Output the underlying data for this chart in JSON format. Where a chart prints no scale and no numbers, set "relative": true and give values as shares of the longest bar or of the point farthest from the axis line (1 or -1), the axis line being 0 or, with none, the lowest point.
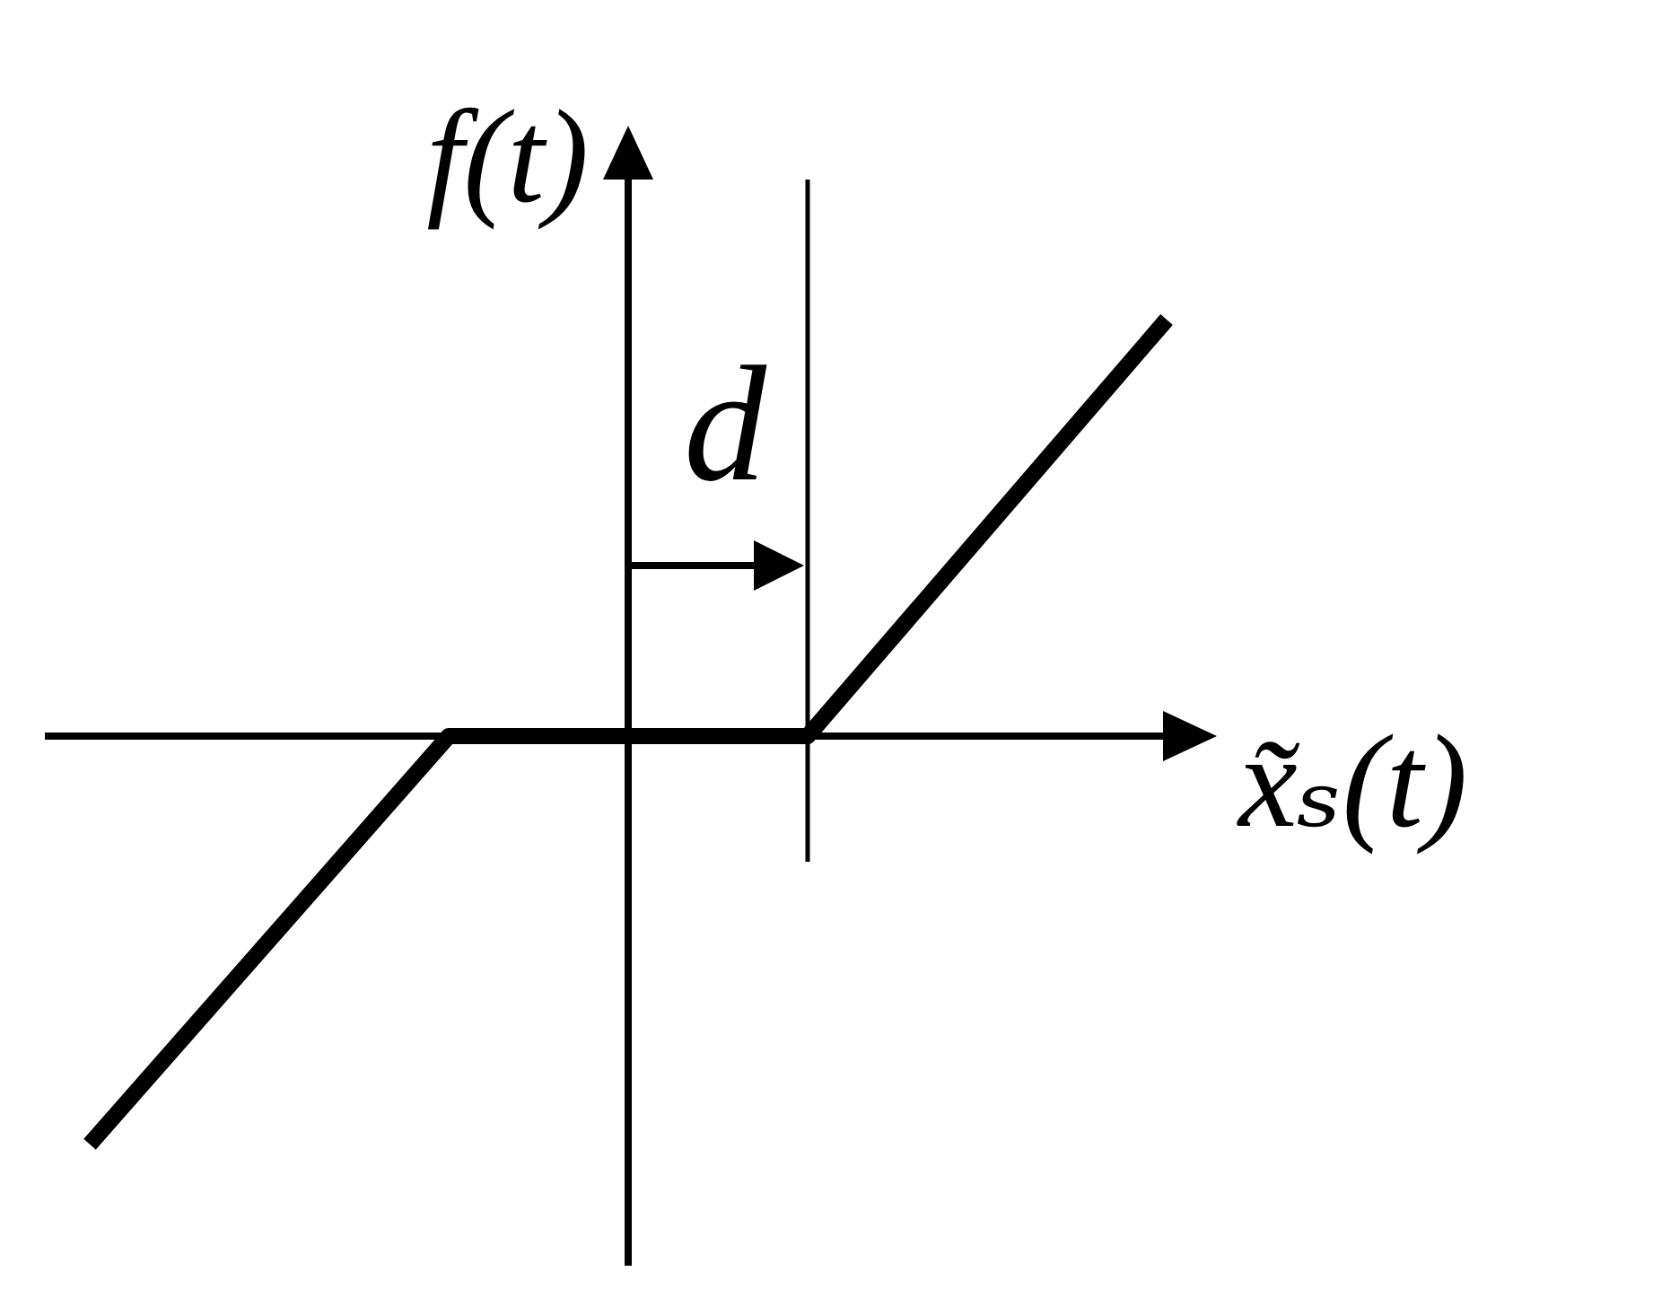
{
  "chart_data": {
    "type": "line",
    "relative": true,
    "categories": [
      null,
      null,
      null,
      null
    ],
    "series": [
      {
        "color": "#000000",
        "values": [
          -0.98,
          0,
          0,
          1
        ]
      }
    ],
    "xlabel": "x̃ₛ(t)",
    "ylabel": "f(t)",
    "annotations": [
      "d"
    ],
    "marker": "none",
    "line_style": "solid"
  }
}
